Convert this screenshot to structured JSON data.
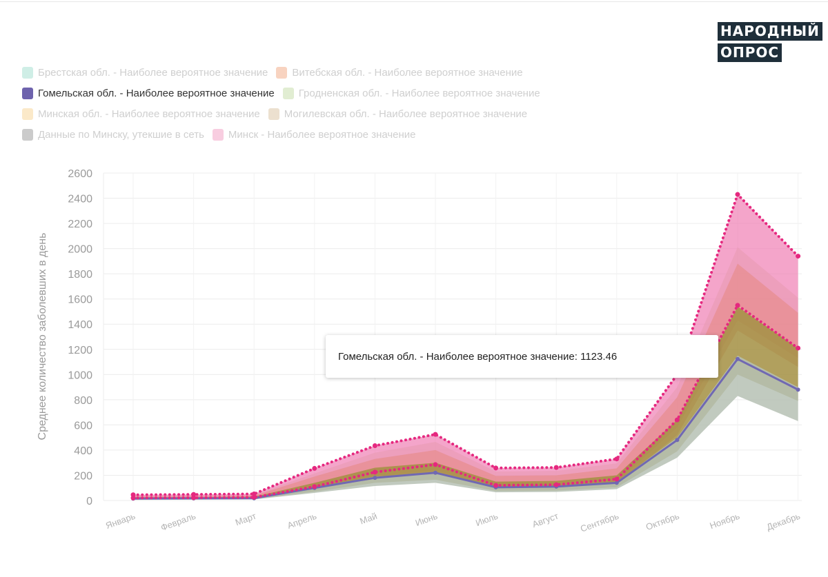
{
  "logo": {
    "line1": "НАРОДНЫЙ",
    "line2": "ОПРОС"
  },
  "legend": [
    [
      {
        "label": "Брестская обл. - Наиболее вероятное значение",
        "color": "#cfeee6",
        "active": false
      },
      {
        "label": "Витебская обл. - Наиболее вероятное значение",
        "color": "#f8d3c0",
        "active": false
      }
    ],
    [
      {
        "label": "Гомельская обл. - Наиболее вероятное значение",
        "color": "#6e63ad",
        "active": true
      },
      {
        "label": "Гродненская обл. - Наиболее вероятное значение",
        "color": "#e1edd2",
        "active": false
      }
    ],
    [
      {
        "label": "Минская обл. - Наиболее вероятное значение",
        "color": "#fbe9c9",
        "active": false
      },
      {
        "label": "Могилевская обл. - Наиболее вероятное значение",
        "color": "#ece0cf",
        "active": false
      }
    ],
    [
      {
        "label": "Данные по Минску, утекшие в сеть",
        "color": "#cbcbcb",
        "active": false
      },
      {
        "label": "Минск - Наиболее вероятное значение",
        "color": "#f8cde0",
        "active": false
      }
    ]
  ],
  "tooltip": {
    "text": "Гомельская обл. - Наиболее вероятное значение: 1123.46"
  },
  "chart_data": {
    "type": "line",
    "ylabel": "Среднее количество заболевших в день",
    "xlabel": "",
    "ylim": [
      0,
      2600
    ],
    "yticks": [
      0,
      200,
      400,
      600,
      800,
      1000,
      1200,
      1400,
      1600,
      1800,
      2000,
      2200,
      2400,
      2600
    ],
    "grid": true,
    "categories": [
      "Январь",
      "Февраль",
      "Март",
      "Апрель",
      "Май",
      "Июнь",
      "Июль",
      "Август",
      "Сентябрь",
      "Октябрь",
      "Ноябрь",
      "Декабрь"
    ],
    "bands": [
      {
        "color": "#f07fb4",
        "opacity": 0.7,
        "upper": [
          45,
          48,
          52,
          255,
          435,
          525,
          258,
          262,
          330,
          1000,
          2430,
          1940
        ],
        "lower": [
          20,
          22,
          25,
          110,
          225,
          285,
          120,
          125,
          170,
          640,
          1550,
          1210
        ]
      },
      {
        "color": "#e79ab0",
        "opacity": 0.55,
        "upper": [
          40,
          42,
          45,
          215,
          380,
          465,
          230,
          235,
          295,
          900,
          2010,
          1610
        ],
        "lower": [
          14,
          15,
          18,
          95,
          190,
          240,
          100,
          105,
          145,
          580,
          1430,
          1130
        ]
      },
      {
        "color": "#e5877f",
        "opacity": 0.55,
        "upper": [
          32,
          34,
          38,
          190,
          330,
          400,
          195,
          200,
          255,
          820,
          1880,
          1490
        ],
        "lower": [
          12,
          13,
          16,
          85,
          170,
          210,
          90,
          95,
          130,
          520,
          1350,
          1060
        ]
      },
      {
        "color": "#a38f42",
        "opacity": 0.85,
        "upper": [
          25,
          26,
          30,
          140,
          260,
          300,
          150,
          155,
          200,
          640,
          1540,
          1210
        ],
        "lower": [
          8,
          9,
          12,
          70,
          140,
          165,
          75,
          78,
          105,
          390,
          1000,
          790
        ]
      },
      {
        "color": "#b6c1b4",
        "opacity": 0.85,
        "upper": [
          14,
          15,
          18,
          105,
          190,
          215,
          110,
          112,
          145,
          500,
          1150,
          900
        ],
        "lower": [
          5,
          6,
          8,
          60,
          115,
          140,
          65,
          68,
          90,
          340,
          830,
          630
        ]
      }
    ],
    "series": [
      {
        "name": "Гомельская обл. - Наиболее вероятное значение",
        "color": "#7068b3",
        "style": "solid",
        "values": [
          15,
          17,
          18,
          100,
          180,
          220,
          105,
          110,
          140,
          480,
          1123.46,
          880
        ]
      },
      {
        "color": "#e5287f",
        "style": "dotted",
        "values": [
          45,
          48,
          52,
          255,
          435,
          525,
          258,
          262,
          330,
          1000,
          2430,
          1940
        ]
      },
      {
        "color": "#e5287f",
        "style": "dotted",
        "values": [
          20,
          22,
          25,
          110,
          225,
          285,
          120,
          125,
          170,
          640,
          1550,
          1210
        ]
      }
    ]
  }
}
